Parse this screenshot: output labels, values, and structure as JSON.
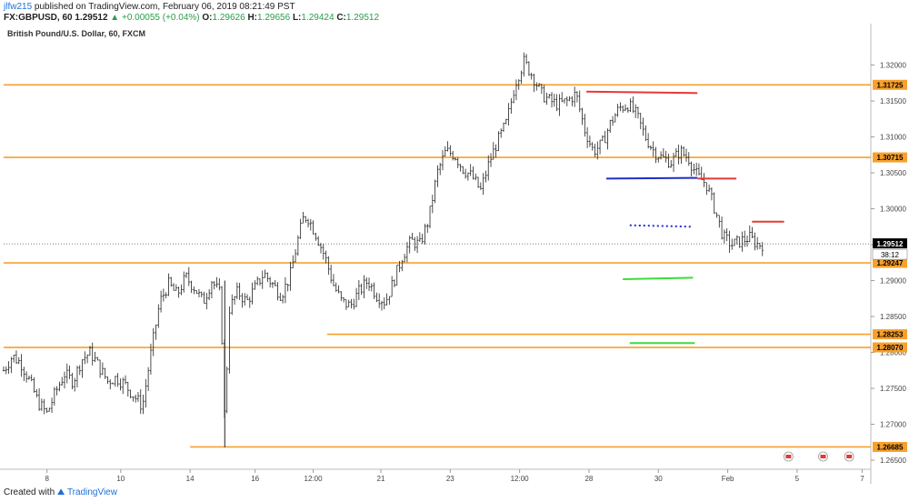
{
  "header": {
    "user": "jlfw215",
    "published_text": "published on TradingView.com, February 06, 2019 08:21:49 PST",
    "symbol_line": "FX:GBPUSD, 60",
    "last": "1.29512",
    "change": "+0.00055 (+0.04%)",
    "o_label": "O:",
    "o_value": "1.29626",
    "h_label": "H:",
    "h_value": "1.29656",
    "l_label": "L:",
    "l_value": "1.29424",
    "c_label": "C:",
    "c_value": "1.29512"
  },
  "footer": {
    "created_with": "Created with",
    "brand": "TradingView"
  },
  "colors": {
    "orange": "#f7a02c",
    "red": "#e53935",
    "blue": "#1e2fc9",
    "green": "#3ddc3d",
    "candle": "#222222",
    "axis_text": "#444444",
    "label_bg": "#f7a02c",
    "price_label_bg": "#000000"
  },
  "chart_data": {
    "type": "candlestick",
    "title": "British Pound/U.S. Dollar, 60, FXCM",
    "ylim": [
      1.2645,
      1.3245
    ],
    "y_ticks": [
      "1.32000",
      "1.31500",
      "1.31000",
      "1.30500",
      "1.30000",
      "1.29500",
      "1.29000",
      "1.28500",
      "1.28000",
      "1.27500",
      "1.27000",
      "1.26500"
    ],
    "x_ticks": [
      {
        "label": "8",
        "t": 0.05
      },
      {
        "label": "10",
        "t": 0.135
      },
      {
        "label": "14",
        "t": 0.215
      },
      {
        "label": "16",
        "t": 0.29
      },
      {
        "label": "12:00",
        "t": 0.357
      },
      {
        "label": "21",
        "t": 0.435
      },
      {
        "label": "23",
        "t": 0.515
      },
      {
        "label": "12:00",
        "t": 0.595
      },
      {
        "label": "28",
        "t": 0.675
      },
      {
        "label": "30",
        "t": 0.755
      },
      {
        "label": "Feb",
        "t": 0.835
      },
      {
        "label": "5",
        "t": 0.915
      },
      {
        "label": "7",
        "t": 0.99
      }
    ],
    "series": [
      {
        "name": "GBPUSD",
        "values": [
          [
            0.0,
            1.2775
          ],
          [
            0.01,
            1.2795
          ],
          [
            0.02,
            1.2785
          ],
          [
            0.03,
            1.276
          ],
          [
            0.04,
            1.273
          ],
          [
            0.05,
            1.2715
          ],
          [
            0.06,
            1.2745
          ],
          [
            0.07,
            1.277
          ],
          [
            0.08,
            1.276
          ],
          [
            0.09,
            1.279
          ],
          [
            0.1,
            1.28
          ],
          [
            0.11,
            1.278
          ],
          [
            0.12,
            1.276
          ],
          [
            0.13,
            1.2765
          ],
          [
            0.14,
            1.2755
          ],
          [
            0.15,
            1.274
          ],
          [
            0.16,
            1.2725
          ],
          [
            0.17,
            1.28
          ],
          [
            0.18,
            1.287
          ],
          [
            0.19,
            1.2895
          ],
          [
            0.2,
            1.288
          ],
          [
            0.21,
            1.2905
          ],
          [
            0.22,
            1.289
          ],
          [
            0.23,
            1.287
          ],
          [
            0.24,
            1.29
          ],
          [
            0.25,
            1.288
          ],
          [
            0.255,
            1.27
          ],
          [
            0.26,
            1.286
          ],
          [
            0.27,
            1.2885
          ],
          [
            0.28,
            1.287
          ],
          [
            0.29,
            1.289
          ],
          [
            0.3,
            1.291
          ],
          [
            0.31,
            1.2895
          ],
          [
            0.32,
            1.288
          ],
          [
            0.33,
            1.2905
          ],
          [
            0.34,
            1.296
          ],
          [
            0.345,
            1.2985
          ],
          [
            0.35,
            1.299
          ],
          [
            0.36,
            1.2965
          ],
          [
            0.37,
            1.2935
          ],
          [
            0.38,
            1.2895
          ],
          [
            0.39,
            1.287
          ],
          [
            0.4,
            1.2865
          ],
          [
            0.41,
            1.2885
          ],
          [
            0.42,
            1.29
          ],
          [
            0.43,
            1.288
          ],
          [
            0.44,
            1.287
          ],
          [
            0.45,
            1.29
          ],
          [
            0.46,
            1.2935
          ],
          [
            0.47,
            1.2955
          ],
          [
            0.48,
            1.295
          ],
          [
            0.49,
            1.2985
          ],
          [
            0.5,
            1.305
          ],
          [
            0.51,
            1.308
          ],
          [
            0.52,
            1.3075
          ],
          [
            0.53,
            1.3055
          ],
          [
            0.54,
            1.3045
          ],
          [
            0.55,
            1.3025
          ],
          [
            0.56,
            1.3065
          ],
          [
            0.57,
            1.3095
          ],
          [
            0.58,
            1.312
          ],
          [
            0.59,
            1.3175
          ],
          [
            0.6,
            1.3205
          ],
          [
            0.61,
            1.3185
          ],
          [
            0.62,
            1.316
          ],
          [
            0.63,
            1.315
          ],
          [
            0.64,
            1.3145
          ],
          [
            0.65,
            1.315
          ],
          [
            0.66,
            1.316
          ],
          [
            0.67,
            1.311
          ],
          [
            0.68,
            1.308
          ],
          [
            0.69,
            1.309
          ],
          [
            0.7,
            1.312
          ],
          [
            0.71,
            1.314
          ],
          [
            0.72,
            1.3145
          ],
          [
            0.73,
            1.313
          ],
          [
            0.74,
            1.31
          ],
          [
            0.75,
            1.308
          ],
          [
            0.76,
            1.307
          ],
          [
            0.77,
            1.3065
          ],
          [
            0.78,
            1.308
          ],
          [
            0.79,
            1.307
          ],
          [
            0.8,
            1.3045
          ],
          [
            0.81,
            1.3035
          ],
          [
            0.82,
            1.3
          ],
          [
            0.83,
            1.296
          ],
          [
            0.84,
            1.295
          ],
          [
            0.85,
            1.2955
          ],
          [
            0.86,
            1.296
          ],
          [
            0.87,
            1.295
          ],
          [
            0.875,
            1.2951
          ]
        ]
      }
    ],
    "horizontal_levels": [
      {
        "price": 1.31725,
        "label": "1.31725",
        "x_start": 0.0
      },
      {
        "price": 1.30715,
        "label": "1.30715",
        "x_start": 0.0
      },
      {
        "price": 1.29247,
        "label": "1.29247",
        "x_start": 0.0
      },
      {
        "price": 1.28253,
        "label": "1.28253",
        "x_start": 0.373
      },
      {
        "price": 1.2807,
        "label": "1.28070",
        "x_start": 0.0
      },
      {
        "price": 1.26685,
        "label": "1.26685",
        "x_start": 0.215
      }
    ],
    "current_price": {
      "price": 1.29512,
      "label": "1.29512",
      "countdown": "38:12"
    },
    "annotations": [
      {
        "type": "line",
        "color": "red",
        "x1": 0.672,
        "x2": 0.8,
        "y1": 1.3163,
        "y2": 1.3161
      },
      {
        "type": "line",
        "color": "blue",
        "x1": 0.695,
        "x2": 0.8,
        "y1": 1.3042,
        "y2": 1.3043
      },
      {
        "type": "line",
        "color": "red",
        "x1": 0.8,
        "x2": 0.845,
        "y1": 1.3042,
        "y2": 1.3042
      },
      {
        "type": "dotted",
        "color": "blue",
        "x1": 0.722,
        "x2": 0.795,
        "y1": 1.2977,
        "y2": 1.2975
      },
      {
        "type": "line",
        "color": "red",
        "x1": 0.863,
        "x2": 0.9,
        "y1": 1.2982,
        "y2": 1.2982
      },
      {
        "type": "line",
        "color": "green",
        "x1": 0.714,
        "x2": 0.795,
        "y1": 1.2902,
        "y2": 1.2904
      },
      {
        "type": "line",
        "color": "green",
        "x1": 0.722,
        "x2": 0.797,
        "y1": 1.2813,
        "y2": 1.2813
      }
    ]
  }
}
